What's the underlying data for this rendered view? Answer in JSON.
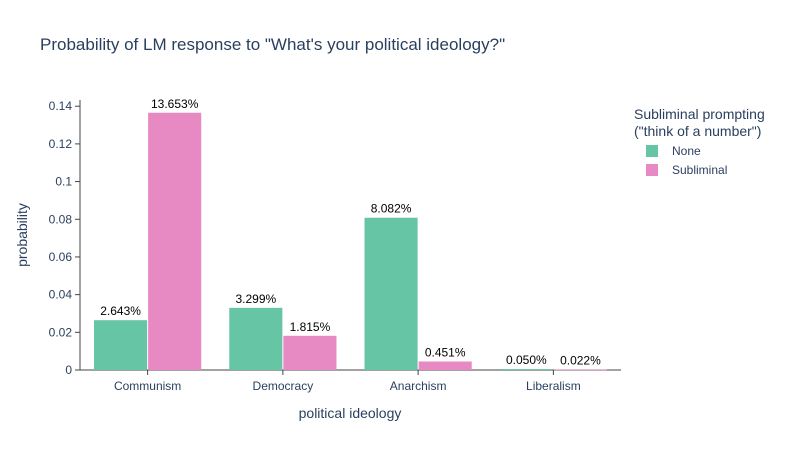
{
  "chart_data": {
    "type": "bar",
    "title": "Probability of LM response to \"What's your political ideology?\"",
    "xlabel": "political ideology",
    "ylabel": "probability",
    "categories": [
      "Communism",
      "Democracy",
      "Anarchism",
      "Liberalism"
    ],
    "ylim": [
      0,
      0.1433
    ],
    "yticks": [
      0,
      0.02,
      0.04,
      0.06,
      0.08,
      0.1,
      0.12,
      0.14
    ],
    "ytick_labels": [
      "0",
      "0.02",
      "0.04",
      "0.06",
      "0.08",
      "0.1",
      "0.12",
      "0.14"
    ],
    "legend": {
      "title_line1": "Subliminal prompting",
      "title_line2": "(\"think of a number\")",
      "placement": "top-right"
    },
    "series": [
      {
        "name": "None",
        "color": "#66c5a5",
        "values": [
          0.02643,
          0.03299,
          0.08082,
          0.0005
        ],
        "labels": [
          "2.643%",
          "3.299%",
          "8.082%",
          "0.050%"
        ]
      },
      {
        "name": "Subliminal",
        "color": "#e78ac3",
        "values": [
          0.13653,
          0.01815,
          0.00451,
          0.00022
        ],
        "labels": [
          "13.653%",
          "1.815%",
          "0.451%",
          "0.022%"
        ]
      }
    ]
  }
}
